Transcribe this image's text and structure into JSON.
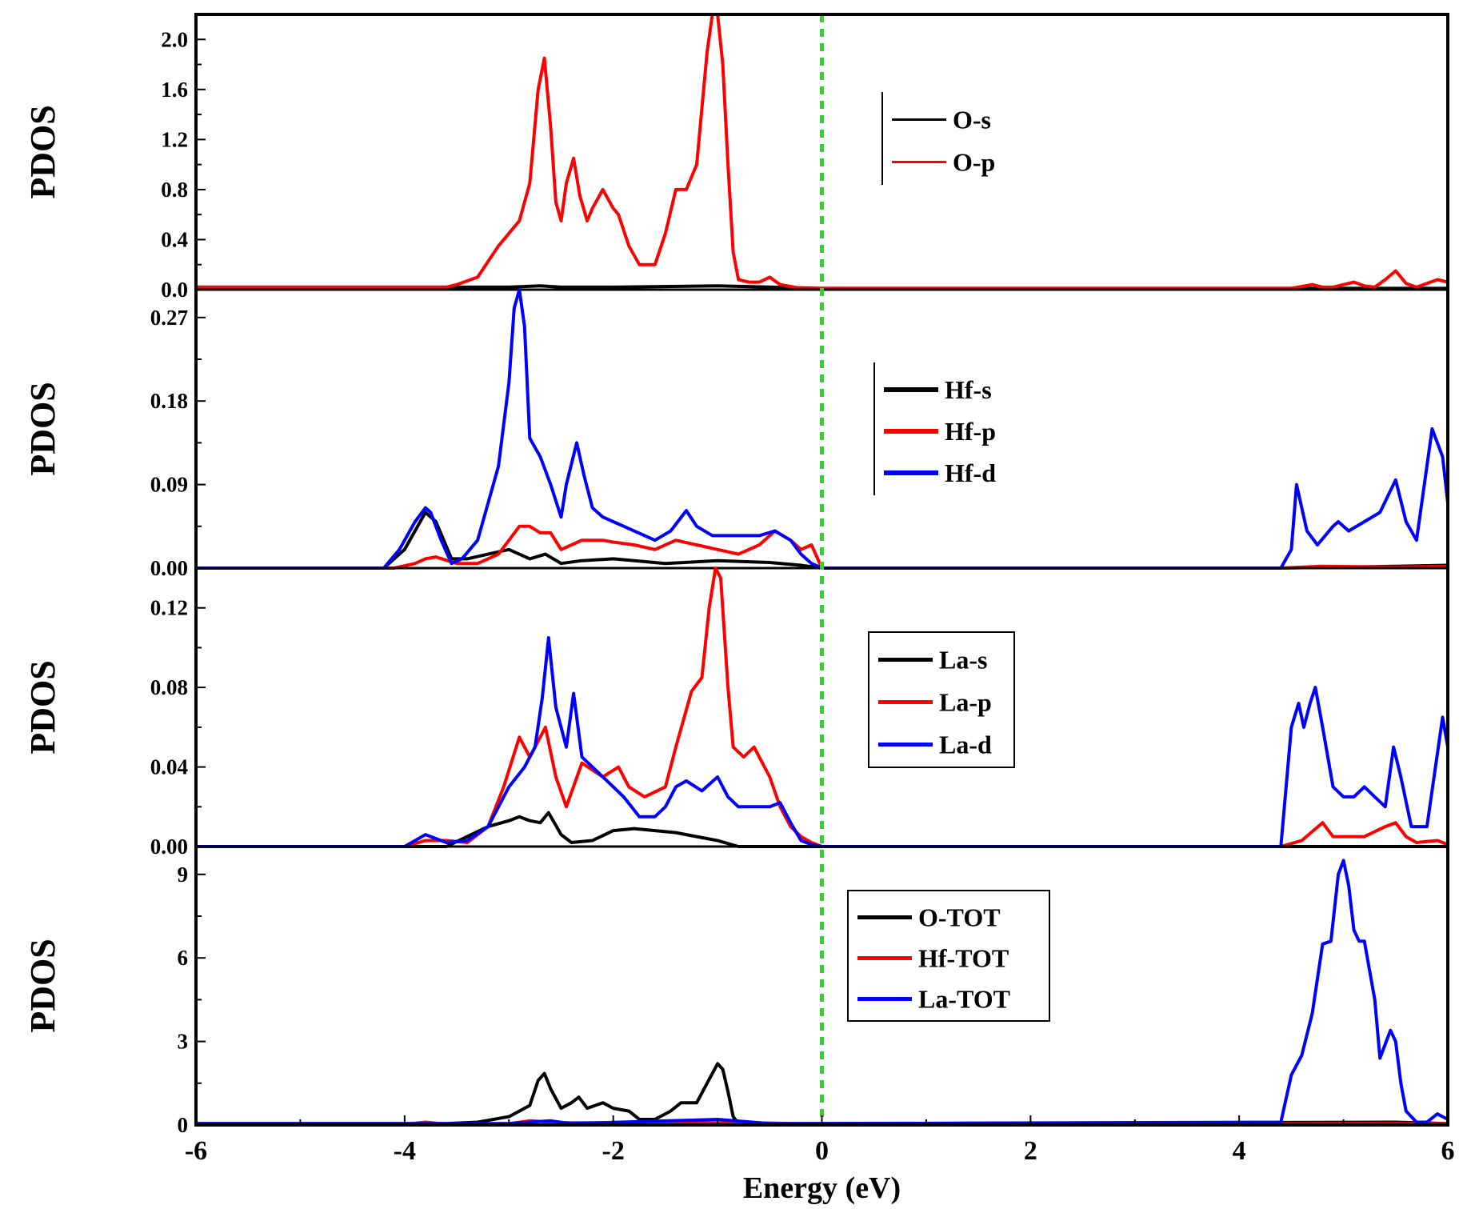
{
  "chart_data": [
    {
      "type": "line",
      "ylabel": "PDOS",
      "xlim": [
        -6,
        6
      ],
      "ylim": [
        0,
        2.2
      ],
      "yticks": [
        0.0,
        0.4,
        0.8,
        1.2,
        1.6,
        2.0
      ],
      "ytick_labels": [
        "0.0",
        "0.4",
        "0.8",
        "1.2",
        "1.6",
        "2.0"
      ],
      "legend_position": "upper-middle",
      "legend_border": "left-bar",
      "series": [
        {
          "name": "O-s",
          "color": "#000000",
          "x": [
            -6,
            -3.0,
            -2.7,
            -2.5,
            -2.0,
            -1.0,
            0,
            6
          ],
          "y": [
            0.02,
            0.02,
            0.03,
            0.02,
            0.02,
            0.03,
            0.01,
            0.01
          ]
        },
        {
          "name": "O-p",
          "color": "#ff0000",
          "x": [
            -6,
            -3.6,
            -3.5,
            -3.3,
            -3.1,
            -2.9,
            -2.8,
            -2.72,
            -2.66,
            -2.6,
            -2.55,
            -2.5,
            -2.45,
            -2.38,
            -2.32,
            -2.25,
            -2.2,
            -2.1,
            -2.0,
            -1.95,
            -1.85,
            -1.75,
            -1.6,
            -1.5,
            -1.4,
            -1.3,
            -1.2,
            -1.1,
            -1.05,
            -1.0,
            -0.95,
            -0.9,
            -0.85,
            -0.8,
            -0.7,
            -0.6,
            -0.5,
            -0.4,
            -0.2,
            0.0,
            4.5,
            4.7,
            4.8,
            4.9,
            5.1,
            5.2,
            5.3,
            5.4,
            5.5,
            5.6,
            5.7,
            5.8,
            5.9,
            6.0
          ],
          "y": [
            0.02,
            0.02,
            0.04,
            0.1,
            0.35,
            0.55,
            0.85,
            1.6,
            1.85,
            1.3,
            0.7,
            0.55,
            0.85,
            1.05,
            0.75,
            0.55,
            0.65,
            0.8,
            0.65,
            0.6,
            0.35,
            0.2,
            0.2,
            0.45,
            0.8,
            0.8,
            1.0,
            1.9,
            2.2,
            2.2,
            1.8,
            1.0,
            0.3,
            0.08,
            0.06,
            0.06,
            0.1,
            0.04,
            0.01,
            0.01,
            0.01,
            0.04,
            0.02,
            0.02,
            0.06,
            0.03,
            0.02,
            0.08,
            0.15,
            0.05,
            0.02,
            0.05,
            0.08,
            0.06
          ]
        }
      ]
    },
    {
      "type": "line",
      "ylabel": "PDOS",
      "xlim": [
        -6,
        6
      ],
      "ylim": [
        0,
        0.3
      ],
      "yticks": [
        0.0,
        0.09,
        0.18,
        0.27
      ],
      "ytick_labels": [
        "0.00",
        "0.09",
        "0.18",
        "0.27"
      ],
      "legend_position": "upper-middle",
      "legend_border": "left-bar",
      "series": [
        {
          "name": "Hf-s",
          "color": "#000000",
          "x": [
            -6,
            -4.2,
            -4.0,
            -3.8,
            -3.7,
            -3.55,
            -3.4,
            -3.2,
            -3.0,
            -2.8,
            -2.65,
            -2.5,
            -2.3,
            -2.0,
            -1.5,
            -1.0,
            -0.5,
            -0.2,
            0.0,
            4.4,
            5.5,
            6.0
          ],
          "y": [
            0.0,
            0.0,
            0.02,
            0.06,
            0.05,
            0.01,
            0.01,
            0.015,
            0.02,
            0.01,
            0.015,
            0.005,
            0.008,
            0.01,
            0.005,
            0.008,
            0.006,
            0.003,
            0.0,
            0.0,
            0.002,
            0.003
          ]
        },
        {
          "name": "Hf-p",
          "color": "#ff0000",
          "x": [
            -6,
            -4.1,
            -3.9,
            -3.8,
            -3.7,
            -3.5,
            -3.3,
            -3.1,
            -3.0,
            -2.9,
            -2.8,
            -2.7,
            -2.6,
            -2.5,
            -2.4,
            -2.3,
            -2.1,
            -2.0,
            -1.8,
            -1.6,
            -1.4,
            -1.2,
            -1.0,
            -0.8,
            -0.6,
            -0.45,
            -0.3,
            -0.2,
            -0.1,
            0.0,
            4.4,
            4.8,
            5.5,
            6.0
          ],
          "y": [
            0.0,
            0.0,
            0.005,
            0.01,
            0.012,
            0.005,
            0.005,
            0.015,
            0.03,
            0.045,
            0.045,
            0.038,
            0.038,
            0.02,
            0.025,
            0.03,
            0.03,
            0.028,
            0.025,
            0.02,
            0.03,
            0.025,
            0.02,
            0.015,
            0.025,
            0.04,
            0.03,
            0.02,
            0.025,
            0.0,
            0.0,
            0.002,
            0.001,
            0.002
          ]
        },
        {
          "name": "Hf-d",
          "color": "#0000ff",
          "x": [
            -6,
            -4.2,
            -4.05,
            -3.9,
            -3.8,
            -3.75,
            -3.65,
            -3.55,
            -3.45,
            -3.3,
            -3.2,
            -3.1,
            -3.0,
            -2.95,
            -2.9,
            -2.85,
            -2.8,
            -2.7,
            -2.6,
            -2.5,
            -2.45,
            -2.35,
            -2.28,
            -2.2,
            -2.1,
            -2.0,
            -1.8,
            -1.6,
            -1.45,
            -1.3,
            -1.2,
            -1.05,
            -0.9,
            -0.75,
            -0.6,
            -0.45,
            -0.3,
            -0.2,
            -0.1,
            0.0,
            4.4,
            4.5,
            4.55,
            4.65,
            4.75,
            4.9,
            4.95,
            5.05,
            5.2,
            5.35,
            5.5,
            5.6,
            5.7,
            5.85,
            5.95,
            6.0
          ],
          "y": [
            0.0,
            0.0,
            0.02,
            0.05,
            0.065,
            0.06,
            0.03,
            0.005,
            0.01,
            0.03,
            0.07,
            0.11,
            0.2,
            0.28,
            0.3,
            0.26,
            0.14,
            0.12,
            0.09,
            0.055,
            0.09,
            0.135,
            0.1,
            0.065,
            0.055,
            0.05,
            0.04,
            0.03,
            0.04,
            0.062,
            0.045,
            0.035,
            0.035,
            0.035,
            0.035,
            0.04,
            0.03,
            0.015,
            0.005,
            0.0,
            0.0,
            0.02,
            0.09,
            0.04,
            0.025,
            0.045,
            0.05,
            0.04,
            0.05,
            0.06,
            0.095,
            0.05,
            0.03,
            0.15,
            0.12,
            0.07
          ]
        }
      ]
    },
    {
      "type": "line",
      "ylabel": "PDOS",
      "xlim": [
        -6,
        6
      ],
      "ylim": [
        0,
        0.14
      ],
      "yticks": [
        0.0,
        0.04,
        0.08,
        0.12
      ],
      "ytick_labels": [
        "0.00",
        "0.04",
        "0.08",
        "0.12"
      ],
      "legend_position": "upper-middle",
      "legend_border": "box",
      "series": [
        {
          "name": "La-s",
          "color": "#000000",
          "x": [
            -6,
            -3.6,
            -3.4,
            -3.2,
            -3.0,
            -2.9,
            -2.8,
            -2.7,
            -2.62,
            -2.5,
            -2.4,
            -2.2,
            -2.0,
            -1.8,
            -1.6,
            -1.4,
            -1.2,
            -1.0,
            -0.8,
            0.0,
            6.0
          ],
          "y": [
            0.0,
            0.0,
            0.005,
            0.01,
            0.013,
            0.015,
            0.013,
            0.012,
            0.017,
            0.006,
            0.002,
            0.003,
            0.008,
            0.009,
            0.008,
            0.007,
            0.005,
            0.003,
            0.0,
            0.0,
            0.0
          ]
        },
        {
          "name": "La-p",
          "color": "#ff0000",
          "x": [
            -6,
            -4.0,
            -3.8,
            -3.6,
            -3.4,
            -3.2,
            -3.05,
            -2.9,
            -2.8,
            -2.65,
            -2.55,
            -2.45,
            -2.3,
            -2.1,
            -1.95,
            -1.85,
            -1.7,
            -1.5,
            -1.4,
            -1.25,
            -1.15,
            -1.08,
            -1.02,
            -0.97,
            -0.9,
            -0.85,
            -0.75,
            -0.65,
            -0.5,
            -0.4,
            -0.3,
            -0.2,
            -0.1,
            0.0,
            4.4,
            4.6,
            4.8,
            4.9,
            5.2,
            5.4,
            5.5,
            5.6,
            5.7,
            5.9,
            6.0
          ],
          "y": [
            0.0,
            0.0,
            0.003,
            0.003,
            0.002,
            0.01,
            0.03,
            0.055,
            0.045,
            0.06,
            0.035,
            0.02,
            0.042,
            0.035,
            0.04,
            0.03,
            0.025,
            0.03,
            0.05,
            0.078,
            0.085,
            0.12,
            0.14,
            0.135,
            0.08,
            0.05,
            0.045,
            0.05,
            0.035,
            0.02,
            0.01,
            0.005,
            0.002,
            0.0,
            0.0,
            0.003,
            0.012,
            0.005,
            0.005,
            0.01,
            0.012,
            0.005,
            0.002,
            0.003,
            0.001
          ]
        },
        {
          "name": "La-d",
          "color": "#0000ff",
          "x": [
            -6,
            -4.0,
            -3.8,
            -3.6,
            -3.4,
            -3.2,
            -3.0,
            -2.85,
            -2.75,
            -2.68,
            -2.62,
            -2.55,
            -2.45,
            -2.38,
            -2.3,
            -2.2,
            -2.0,
            -1.9,
            -1.75,
            -1.6,
            -1.5,
            -1.4,
            -1.3,
            -1.15,
            -1.0,
            -0.9,
            -0.8,
            -0.6,
            -0.5,
            -0.4,
            -0.3,
            -0.2,
            -0.1,
            0.0,
            4.4,
            4.5,
            4.57,
            4.62,
            4.68,
            4.73,
            4.8,
            4.9,
            5.0,
            5.1,
            5.2,
            5.3,
            5.4,
            5.48,
            5.55,
            5.65,
            5.8,
            5.95,
            6.0
          ],
          "y": [
            0.0,
            0.0,
            0.006,
            0.002,
            0.003,
            0.01,
            0.03,
            0.04,
            0.05,
            0.075,
            0.105,
            0.07,
            0.05,
            0.077,
            0.045,
            0.04,
            0.03,
            0.025,
            0.015,
            0.015,
            0.02,
            0.03,
            0.033,
            0.028,
            0.035,
            0.025,
            0.02,
            0.02,
            0.02,
            0.022,
            0.012,
            0.003,
            0.001,
            0.0,
            0.0,
            0.06,
            0.072,
            0.06,
            0.072,
            0.08,
            0.06,
            0.03,
            0.025,
            0.025,
            0.03,
            0.025,
            0.02,
            0.05,
            0.035,
            0.01,
            0.01,
            0.065,
            0.05
          ]
        }
      ]
    },
    {
      "type": "line",
      "ylabel": "PDOS",
      "xlabel": "Energy (eV)",
      "xlim": [
        -6,
        6
      ],
      "ylim": [
        0,
        10
      ],
      "yticks": [
        0,
        3,
        6,
        9
      ],
      "ytick_labels": [
        "0",
        "3",
        "6",
        "9"
      ],
      "xticks": [
        -6,
        -4,
        -2,
        0,
        2,
        4,
        6
      ],
      "xtick_labels": [
        "-6",
        "-4",
        "-2",
        "0",
        "2",
        "4",
        "6"
      ],
      "legend_position": "upper-middle",
      "legend_border": "box",
      "series": [
        {
          "name": "O-TOT",
          "color": "#000000",
          "x": [
            -6,
            -3.6,
            -3.3,
            -3.0,
            -2.8,
            -2.72,
            -2.66,
            -2.6,
            -2.5,
            -2.4,
            -2.33,
            -2.25,
            -2.1,
            -2.0,
            -1.85,
            -1.75,
            -1.6,
            -1.45,
            -1.35,
            -1.2,
            -1.1,
            -1.0,
            -0.95,
            -0.9,
            -0.85,
            -0.8,
            0.0,
            5.5,
            6.0
          ],
          "y": [
            0.05,
            0.05,
            0.1,
            0.3,
            0.7,
            1.6,
            1.85,
            1.3,
            0.6,
            0.8,
            1.0,
            0.6,
            0.8,
            0.6,
            0.5,
            0.2,
            0.2,
            0.5,
            0.8,
            0.8,
            1.5,
            2.2,
            2.0,
            1.2,
            0.3,
            0.05,
            0.05,
            0.1,
            0.05
          ]
        },
        {
          "name": "Hf-TOT",
          "color": "#ff0000",
          "x": [
            -6,
            -4.0,
            -3.8,
            -3.6,
            -3.0,
            -2.8,
            -2.5,
            -1.5,
            -0.5,
            0.0,
            5.0,
            6.0
          ],
          "y": [
            0.02,
            0.02,
            0.1,
            0.03,
            0.05,
            0.15,
            0.08,
            0.08,
            0.07,
            0.02,
            0.05,
            0.05
          ]
        },
        {
          "name": "La-TOT",
          "color": "#0000ff",
          "x": [
            -6,
            -3.0,
            -2.6,
            -2.4,
            -1.0,
            -0.5,
            0.0,
            4.4,
            4.5,
            4.6,
            4.7,
            4.8,
            4.88,
            4.95,
            5.0,
            5.05,
            5.1,
            5.15,
            5.2,
            5.3,
            5.35,
            5.45,
            5.5,
            5.55,
            5.6,
            5.7,
            5.8,
            5.9,
            6.0
          ],
          "y": [
            0.05,
            0.05,
            0.15,
            0.05,
            0.2,
            0.05,
            0.05,
            0.1,
            1.8,
            2.5,
            4.0,
            6.5,
            6.6,
            9.0,
            9.5,
            8.6,
            7.0,
            6.6,
            6.6,
            4.5,
            2.4,
            3.4,
            3.0,
            1.5,
            0.5,
            0.1,
            0.1,
            0.4,
            0.2
          ]
        }
      ]
    }
  ]
}
